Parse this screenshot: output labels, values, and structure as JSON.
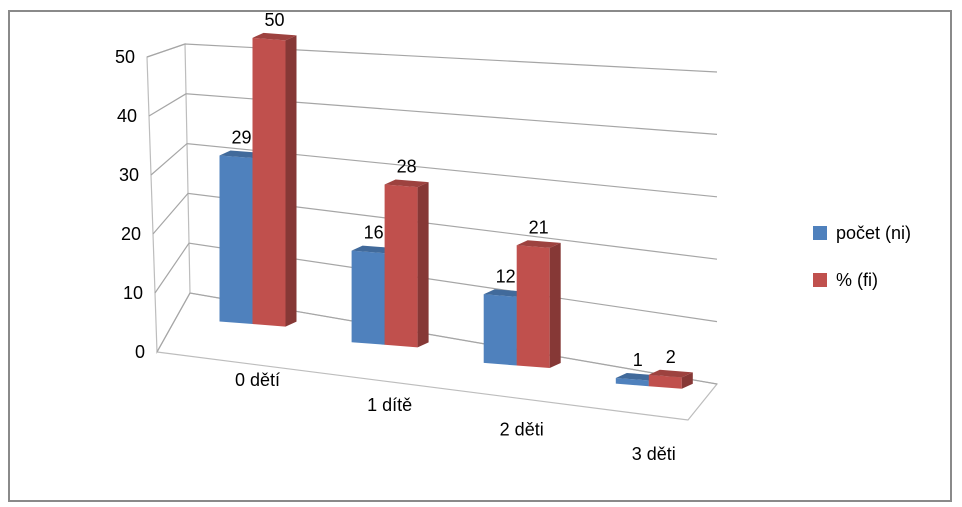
{
  "chart_data": {
    "type": "bar",
    "title": "",
    "xlabel": "",
    "ylabel": "",
    "categories": [
      "0 dětí",
      "1 dítě",
      "2 děti",
      "3 děti"
    ],
    "series": [
      {
        "name": "počet (ni)",
        "values": [
          29,
          16,
          12,
          1
        ],
        "color": "#4f81bd"
      },
      {
        "name": "% (fi)",
        "values": [
          50,
          28,
          21,
          2
        ],
        "color": "#c0504d"
      }
    ],
    "y_ticks": [
      0,
      10,
      20,
      30,
      40,
      50
    ],
    "ylim": [
      0,
      50
    ],
    "grid": true,
    "legend_position": "right",
    "style": "3d-perspective"
  }
}
